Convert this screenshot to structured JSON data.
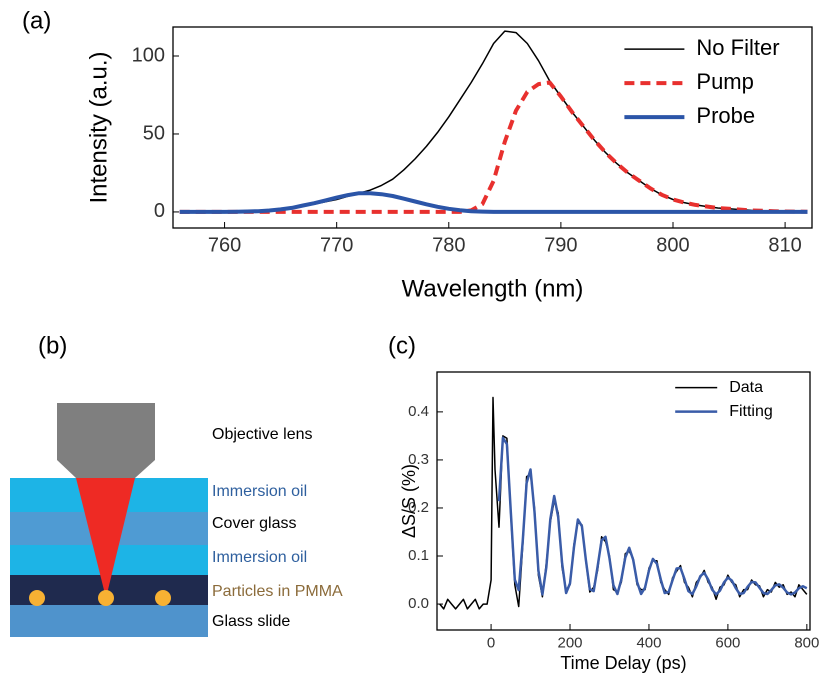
{
  "chart_data": [
    {
      "type": "line",
      "panel_label": "(a)",
      "x_label": "Wavelength (nm)",
      "y_label": "Intensity (a.u.)",
      "x": [
        756,
        757,
        758,
        759,
        760,
        761,
        762,
        763,
        764,
        765,
        766,
        767,
        768,
        769,
        770,
        771,
        772,
        773,
        774,
        775,
        776,
        777,
        778,
        779,
        780,
        781,
        782,
        783,
        784,
        785,
        786,
        787,
        788,
        789,
        790,
        791,
        792,
        793,
        794,
        795,
        796,
        797,
        798,
        799,
        800,
        801,
        802,
        803,
        804,
        805,
        806,
        807,
        808,
        809,
        810,
        811,
        812
      ],
      "series": [
        {
          "name": "No Filter",
          "color": "#000000",
          "linewidth": 1.5,
          "linestyle": "solid",
          "values": [
            0,
            0,
            0,
            0,
            0.2,
            0.4,
            0.7,
            1,
            1.5,
            2,
            3,
            4,
            5,
            6.5,
            8,
            10,
            12,
            14,
            17,
            21,
            27,
            34,
            42,
            51,
            61,
            72,
            83,
            95,
            108,
            116,
            115,
            108,
            97,
            84,
            74,
            64,
            55,
            46,
            38,
            31,
            25,
            20,
            15,
            11,
            8,
            6,
            4.5,
            3.5,
            2.5,
            2,
            1.5,
            1,
            0.7,
            0.5,
            0.3,
            0.2,
            0.1
          ]
        },
        {
          "name": "Pump",
          "color": "#e8302e",
          "linewidth": 4,
          "linestyle": "dashed",
          "values": [
            0,
            0,
            0,
            0,
            0,
            0,
            0,
            0,
            0,
            0,
            0,
            0,
            0,
            0,
            0,
            0,
            0,
            0,
            0,
            0,
            0,
            0,
            0,
            0,
            0,
            0,
            1,
            5,
            20,
            45,
            65,
            77,
            82,
            83,
            74,
            64,
            55,
            46,
            38,
            31,
            25,
            20,
            15,
            11,
            8,
            6,
            4.5,
            3.5,
            2.5,
            2,
            1.5,
            1,
            0.7,
            0.5,
            0.3,
            0.2,
            0.1
          ]
        },
        {
          "name": "Probe",
          "color": "#2b55a8",
          "linewidth": 4,
          "linestyle": "solid",
          "values": [
            0,
            0,
            0,
            0,
            0.05,
            0.1,
            0.3,
            0.5,
            0.9,
            1.6,
            2.6,
            4.1,
            5.6,
            7.4,
            9.2,
            10.8,
            12,
            12,
            11.4,
            10.2,
            8.5,
            6.7,
            4.9,
            3.3,
            2,
            1.1,
            0.5,
            0.2,
            0,
            0,
            0,
            0,
            0,
            0,
            0,
            0,
            0,
            0,
            0,
            0,
            0,
            0,
            0,
            0,
            0,
            0,
            0,
            0,
            0,
            0,
            0,
            0,
            0,
            0,
            0,
            0,
            0
          ]
        }
      ],
      "xlim": [
        755.4,
        812.4
      ],
      "ylim": [
        -10.3,
        118.6
      ],
      "xticks": [
        760,
        770,
        780,
        790,
        800,
        810
      ],
      "yticks": [
        0,
        50,
        100
      ],
      "legend": "upper right",
      "grid": false
    },
    {
      "type": "line",
      "panel_label": "(c)",
      "x_label": "Time Delay (ps)",
      "y_label": "ΔS/S (%)",
      "x": [
        -130,
        -120,
        -110,
        -100,
        -90,
        -80,
        -70,
        -60,
        -50,
        -40,
        -30,
        -20,
        -10,
        0,
        5,
        10,
        20,
        30,
        40,
        50,
        60,
        70,
        80,
        90,
        100,
        110,
        120,
        130,
        140,
        150,
        160,
        170,
        180,
        190,
        200,
        210,
        220,
        230,
        240,
        250,
        260,
        270,
        280,
        290,
        300,
        310,
        320,
        330,
        340,
        350,
        360,
        370,
        380,
        390,
        400,
        410,
        420,
        430,
        440,
        450,
        460,
        470,
        480,
        490,
        500,
        510,
        520,
        530,
        540,
        550,
        560,
        570,
        580,
        590,
        600,
        610,
        620,
        630,
        640,
        650,
        660,
        670,
        680,
        690,
        700,
        710,
        720,
        730,
        740,
        750,
        760,
        770,
        780,
        790,
        800
      ],
      "series": [
        {
          "name": "Data",
          "color": "#000000",
          "linewidth": 1.5,
          "linestyle": "solid",
          "values": [
            0.0,
            -0.01,
            0.01,
            0.0,
            -0.01,
            0.0,
            0.01,
            -0.01,
            0.0,
            0.01,
            -0.01,
            0.0,
            0.0,
            0.05,
            0.43,
            0.28,
            0.16,
            0.35,
            0.345,
            0.185,
            0.04,
            -0.005,
            0.12,
            0.265,
            0.27,
            0.2,
            0.06,
            0.015,
            0.085,
            0.17,
            0.215,
            0.19,
            0.075,
            0.03,
            0.04,
            0.125,
            0.17,
            0.165,
            0.09,
            0.025,
            0.035,
            0.07,
            0.14,
            0.13,
            0.1,
            0.03,
            0.025,
            0.045,
            0.105,
            0.11,
            0.095,
            0.04,
            0.03,
            0.03,
            0.075,
            0.09,
            0.09,
            0.045,
            0.03,
            0.02,
            0.055,
            0.068,
            0.08,
            0.045,
            0.035,
            0.015,
            0.045,
            0.055,
            0.07,
            0.045,
            0.035,
            0.01,
            0.035,
            0.04,
            0.06,
            0.045,
            0.04,
            0.015,
            0.03,
            0.03,
            0.05,
            0.04,
            0.038,
            0.015,
            0.03,
            0.025,
            0.045,
            0.035,
            0.04,
            0.02,
            0.025,
            0.015,
            0.04,
            0.03,
            0.02
          ]
        },
        {
          "name": "Fitting",
          "color": "#3a5ca8",
          "linewidth": 2.5,
          "linestyle": "solid",
          "values": [
            null,
            null,
            null,
            null,
            null,
            null,
            null,
            null,
            null,
            null,
            null,
            null,
            null,
            null,
            null,
            null,
            0.214,
            0.346,
            0.333,
            0.192,
            0.051,
            0.029,
            0.13,
            0.252,
            0.28,
            0.192,
            0.07,
            0.02,
            0.076,
            0.176,
            0.225,
            0.181,
            0.085,
            0.023,
            0.043,
            0.119,
            0.176,
            0.162,
            0.093,
            0.031,
            0.027,
            0.078,
            0.133,
            0.14,
            0.095,
            0.039,
            0.021,
            0.051,
            0.097,
            0.117,
            0.092,
            0.046,
            0.021,
            0.034,
            0.07,
            0.094,
            0.084,
            0.051,
            0.023,
            0.025,
            0.05,
            0.074,
            0.075,
            0.052,
            0.027,
            0.021,
            0.037,
            0.058,
            0.065,
            0.051,
            0.03,
            0.02,
            0.028,
            0.045,
            0.055,
            0.049,
            0.033,
            0.021,
            0.023,
            0.036,
            0.046,
            0.045,
            0.034,
            0.023,
            0.021,
            0.029,
            0.039,
            0.041,
            0.034,
            0.024,
            0.02,
            0.024,
            0.033,
            0.037,
            0.033
          ]
        }
      ],
      "xlim": [
        -137,
        808
      ],
      "ylim": [
        -0.054,
        0.483
      ],
      "xticks": [
        0,
        200,
        400,
        600,
        800
      ],
      "yticks": [
        {
          "value": 0,
          "label": "0.0"
        },
        {
          "value": 0.1,
          "label": "0.1"
        },
        {
          "value": 0.2,
          "label": "0.2"
        },
        {
          "value": 0.3,
          "label": "0.3"
        },
        {
          "value": 0.4,
          "label": "0.4"
        }
      ],
      "legend": "upper right",
      "grid": false
    }
  ],
  "diagram": {
    "panel_label": "(b)",
    "objective": "Objective lens",
    "layers": [
      "Immersion oil",
      "Cover glass",
      "Immersion oil",
      "Particles in PMMA",
      "Glass slide"
    ]
  }
}
